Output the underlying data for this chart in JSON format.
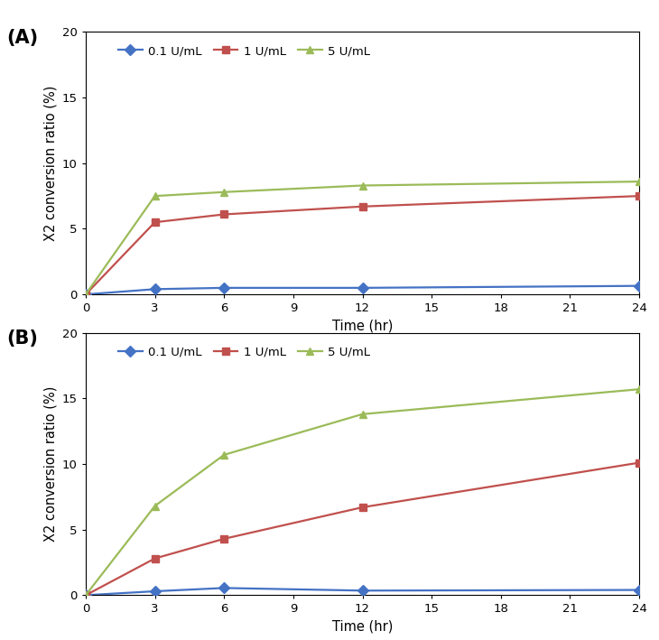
{
  "time_points": [
    0,
    3,
    6,
    12,
    24
  ],
  "panel_A": {
    "label": "(A)",
    "series": [
      {
        "label": "0.1 U/mL",
        "color": "#4472C4",
        "marker": "D",
        "values": [
          0,
          0.4,
          0.5,
          0.5,
          0.65
        ]
      },
      {
        "label": "1 U/mL",
        "color": "#C0504D",
        "marker": "s",
        "values": [
          0,
          5.5,
          6.1,
          6.7,
          7.5
        ]
      },
      {
        "label": "5 U/mL",
        "color": "#9BBB59",
        "marker": "^",
        "values": [
          0,
          7.5,
          7.8,
          8.3,
          8.6
        ]
      }
    ],
    "ylim": [
      0,
      20
    ],
    "yticks": [
      0,
      5,
      10,
      15,
      20
    ],
    "ylabel": "X2 conversion ratio (%)"
  },
  "panel_B": {
    "label": "(B)",
    "series": [
      {
        "label": "0.1 U/mL",
        "color": "#4472C4",
        "marker": "D",
        "values": [
          0,
          0.3,
          0.55,
          0.35,
          0.4
        ]
      },
      {
        "label": "1 U/mL",
        "color": "#C0504D",
        "marker": "s",
        "values": [
          0,
          2.8,
          4.3,
          6.7,
          10.1
        ]
      },
      {
        "label": "5 U/mL",
        "color": "#9BBB59",
        "marker": "^",
        "values": [
          0,
          6.8,
          10.7,
          13.8,
          15.7
        ]
      }
    ],
    "ylim": [
      0,
      20
    ],
    "yticks": [
      0,
      5,
      10,
      15,
      20
    ],
    "ylabel": "X2 conversion ratio (%)"
  },
  "xlabel": "Time (hr)",
  "xticks": [
    0,
    3,
    6,
    9,
    12,
    15,
    18,
    21,
    24
  ],
  "xlim": [
    0,
    24
  ],
  "background_color": "#FFFFFF",
  "panel_bg": "#FFFFFF",
  "line_width": 1.6,
  "marker_size": 6,
  "legend_fontsize": 9.5,
  "axis_fontsize": 10.5,
  "tick_fontsize": 9.5,
  "label_fontsize": 15
}
